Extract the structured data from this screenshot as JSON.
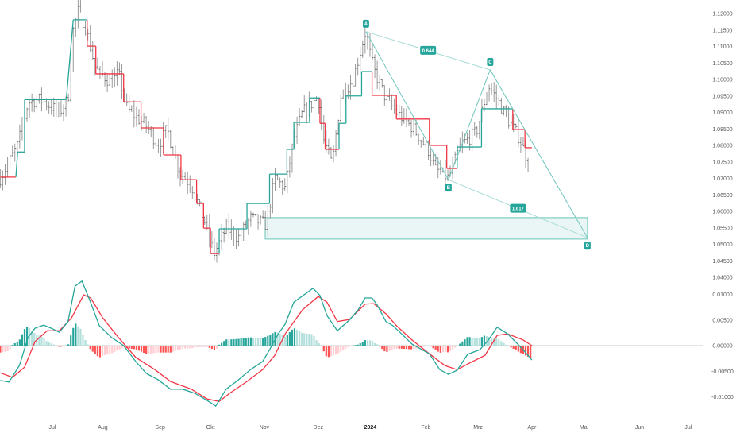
{
  "chart_data": {
    "type": "line",
    "instrument_style": "ohlc-bars",
    "x_unit": "days since Jul 1 2023",
    "price_axis": {
      "ticks": [
        "1.12000",
        "1.11500",
        "1.11000",
        "1.10500",
        "1.10000",
        "1.09500",
        "1.09000",
        "1.08500",
        "1.08000",
        "1.07500",
        "1.07000",
        "1.06500",
        "1.06000",
        "1.05500",
        "1.05000",
        "1.04500",
        "1.04000"
      ],
      "range": [
        1.04,
        1.12
      ]
    },
    "macd_axis": {
      "ticks": [
        "0.01000",
        "0.00500",
        "0.00000",
        "-0.00500",
        "-0.01000"
      ],
      "range": [
        -0.01,
        0.01
      ]
    },
    "time_axis": [
      {
        "label": "Jul",
        "day": 0
      },
      {
        "label": "Aug",
        "day": 29
      },
      {
        "label": "Sep",
        "day": 62
      },
      {
        "label": "Okt",
        "day": 91
      },
      {
        "label": "Nov",
        "day": 122
      },
      {
        "label": "Dez",
        "day": 153
      },
      {
        "label": "2024",
        "day": 183,
        "bold": true
      },
      {
        "label": "Feb",
        "day": 215
      },
      {
        "label": "Mrz",
        "day": 245
      },
      {
        "label": "Apr",
        "day": 276
      },
      {
        "label": "Mai",
        "day": 306
      },
      {
        "label": "Jun",
        "day": 338
      },
      {
        "label": "Jul",
        "day": 366
      }
    ],
    "close_path": [
      [
        -30,
        1.07
      ],
      [
        -20,
        1.08
      ],
      [
        -14,
        1.093
      ],
      [
        -7,
        1.094
      ],
      [
        4,
        1.09
      ],
      [
        9,
        1.094
      ],
      [
        12,
        1.115
      ],
      [
        15,
        1.121
      ],
      [
        19,
        1.116
      ],
      [
        25,
        1.103
      ],
      [
        34,
        1.099
      ],
      [
        38,
        1.102
      ],
      [
        43,
        1.091
      ],
      [
        54,
        1.086
      ],
      [
        61,
        1.08
      ],
      [
        66,
        1.085
      ],
      [
        73,
        1.072
      ],
      [
        80,
        1.068
      ],
      [
        84,
        1.062
      ],
      [
        89,
        1.055
      ],
      [
        93,
        1.047
      ],
      [
        100,
        1.055
      ],
      [
        107,
        1.052
      ],
      [
        114,
        1.058
      ],
      [
        123,
        1.056
      ],
      [
        128,
        1.07
      ],
      [
        134,
        1.067
      ],
      [
        139,
        1.082
      ],
      [
        144,
        1.09
      ],
      [
        150,
        1.093
      ],
      [
        153,
        1.095
      ],
      [
        156,
        1.082
      ],
      [
        161,
        1.074
      ],
      [
        166,
        1.095
      ],
      [
        173,
        1.1
      ],
      [
        180,
        1.114
      ],
      [
        185,
        1.103
      ],
      [
        192,
        1.094
      ],
      [
        198,
        1.09
      ],
      [
        208,
        1.085
      ],
      [
        217,
        1.078
      ],
      [
        220,
        1.073
      ],
      [
        228,
        1.07
      ],
      [
        235,
        1.08
      ],
      [
        244,
        1.084
      ],
      [
        251,
        1.098
      ],
      [
        256,
        1.094
      ],
      [
        262,
        1.088
      ],
      [
        269,
        1.082
      ],
      [
        275,
        1.073
      ]
    ],
    "trail_stop": [
      [
        -30,
        -21,
        1.0704,
        "down"
      ],
      [
        -20,
        -16,
        1.078,
        "up"
      ],
      [
        -16,
        8,
        1.0939,
        "up"
      ],
      [
        12,
        20,
        1.1181,
        "up"
      ],
      [
        20,
        25,
        1.1101,
        "down"
      ],
      [
        25,
        41,
        1.1017,
        "down"
      ],
      [
        41,
        51,
        1.0932,
        "down"
      ],
      [
        51,
        64,
        1.0853,
        "down"
      ],
      [
        64,
        74,
        1.0771,
        "down"
      ],
      [
        74,
        83,
        1.0696,
        "down"
      ],
      [
        83,
        87,
        1.0624,
        "down"
      ],
      [
        87,
        91,
        1.0549,
        "down"
      ],
      [
        91,
        96,
        1.0472,
        "down"
      ],
      [
        96,
        112,
        1.0547,
        "up"
      ],
      [
        112,
        125,
        1.0624,
        "up"
      ],
      [
        125,
        135,
        1.0713,
        "up"
      ],
      [
        135,
        139,
        1.0788,
        "up"
      ],
      [
        139,
        148,
        1.087,
        "up"
      ],
      [
        148,
        154,
        1.0944,
        "up"
      ],
      [
        154,
        157,
        1.0867,
        "down"
      ],
      [
        157,
        165,
        1.0788,
        "down"
      ],
      [
        165,
        169,
        1.0867,
        "up"
      ],
      [
        169,
        178,
        1.095,
        "up"
      ],
      [
        178,
        184,
        1.1024,
        "up"
      ],
      [
        184,
        198,
        1.0952,
        "down"
      ],
      [
        198,
        217,
        1.088,
        "down"
      ],
      [
        217,
        227,
        1.08,
        "down"
      ],
      [
        227,
        233,
        1.073,
        "down"
      ],
      [
        233,
        247,
        1.0795,
        "up"
      ],
      [
        247,
        265,
        1.0911,
        "up"
      ],
      [
        265,
        272,
        1.0848,
        "down"
      ],
      [
        272,
        276,
        1.0793,
        "down"
      ]
    ],
    "macd": [
      [
        -30,
        -0.0068
      ],
      [
        -25,
        -0.0071
      ],
      [
        -19,
        -0.0039
      ],
      [
        -14,
        0.0016
      ],
      [
        -10,
        0.0034
      ],
      [
        -5,
        0.004
      ],
      [
        0,
        0.0033
      ],
      [
        4,
        0.0026
      ],
      [
        9,
        0.0047
      ],
      [
        13,
        0.0116
      ],
      [
        17,
        0.0126
      ],
      [
        21,
        0.0093
      ],
      [
        27,
        0.0039
      ],
      [
        34,
        0.0016
      ],
      [
        41,
        0.0
      ],
      [
        48,
        -0.0031
      ],
      [
        54,
        -0.0054
      ],
      [
        61,
        -0.0067
      ],
      [
        68,
        -0.0085
      ],
      [
        75,
        -0.0085
      ],
      [
        82,
        -0.0093
      ],
      [
        90,
        -0.0109
      ],
      [
        94,
        -0.0118
      ],
      [
        100,
        -0.0085
      ],
      [
        107,
        -0.0067
      ],
      [
        114,
        -0.0047
      ],
      [
        121,
        -0.0031
      ],
      [
        125,
        -0.0008
      ],
      [
        130,
        0.0023
      ],
      [
        134,
        0.0042
      ],
      [
        139,
        0.0085
      ],
      [
        146,
        0.0102
      ],
      [
        150,
        0.0112
      ],
      [
        154,
        0.0098
      ],
      [
        158,
        0.0059
      ],
      [
        164,
        0.0029
      ],
      [
        171,
        0.005
      ],
      [
        176,
        0.007
      ],
      [
        180,
        0.0093
      ],
      [
        184,
        0.0093
      ],
      [
        187,
        0.0079
      ],
      [
        192,
        0.0047
      ],
      [
        196,
        0.0039
      ],
      [
        201,
        0.0023
      ],
      [
        207,
        0.0003
      ],
      [
        217,
        -0.0016
      ],
      [
        223,
        -0.0047
      ],
      [
        228,
        -0.0056
      ],
      [
        233,
        -0.0048
      ],
      [
        239,
        -0.0017
      ],
      [
        246,
        -0.0008
      ],
      [
        251,
        0.0011
      ],
      [
        256,
        0.0036
      ],
      [
        262,
        0.0023
      ],
      [
        267,
        0.0006
      ],
      [
        271,
        -0.0008
      ],
      [
        276,
        -0.0028
      ]
    ],
    "signal": [
      [
        -30,
        -0.0053
      ],
      [
        -23,
        -0.0062
      ],
      [
        -16,
        -0.0042
      ],
      [
        -10,
        0.0008
      ],
      [
        -3,
        0.0029
      ],
      [
        4,
        0.0029
      ],
      [
        11,
        0.0054
      ],
      [
        18,
        0.0099
      ],
      [
        22,
        0.0093
      ],
      [
        29,
        0.0054
      ],
      [
        38,
        0.0016
      ],
      [
        48,
        -0.0023
      ],
      [
        59,
        -0.0047
      ],
      [
        68,
        -0.007
      ],
      [
        80,
        -0.0085
      ],
      [
        89,
        -0.0104
      ],
      [
        96,
        -0.0109
      ],
      [
        102,
        -0.0093
      ],
      [
        112,
        -0.007
      ],
      [
        121,
        -0.0047
      ],
      [
        128,
        -0.0019
      ],
      [
        134,
        0.0023
      ],
      [
        144,
        0.007
      ],
      [
        153,
        0.0096
      ],
      [
        158,
        0.0085
      ],
      [
        164,
        0.0047
      ],
      [
        171,
        0.0051
      ],
      [
        180,
        0.0081
      ],
      [
        185,
        0.0082
      ],
      [
        192,
        0.0062
      ],
      [
        198,
        0.0039
      ],
      [
        207,
        0.0011
      ],
      [
        217,
        -0.0016
      ],
      [
        226,
        -0.0039
      ],
      [
        233,
        -0.0047
      ],
      [
        239,
        -0.0036
      ],
      [
        249,
        -0.0019
      ],
      [
        256,
        0.002
      ],
      [
        262,
        0.0023
      ],
      [
        271,
        0.0011
      ],
      [
        276,
        0.0
      ]
    ],
    "pattern": {
      "points": [
        {
          "label": "A",
          "day": 180.5,
          "price": 1.1145
        },
        {
          "label": "B",
          "day": 228,
          "price": 1.0696
        },
        {
          "label": "C",
          "day": 252,
          "price": 1.1029
        },
        {
          "label": "D",
          "day": 308,
          "price": 1.052
        }
      ],
      "ratios": [
        {
          "label": "0.644",
          "from": "A",
          "to": "C"
        },
        {
          "label": "1.617",
          "from": "B",
          "to": "D"
        }
      ],
      "zone": {
        "day_start": 122.5,
        "day_end": 308,
        "price_top": 1.0581,
        "price_bottom": 1.0516
      }
    },
    "colors": {
      "up": "#26a69a",
      "down": "#f23645",
      "bars": "#8a8a8a",
      "pattern": "#26a69a"
    }
  }
}
